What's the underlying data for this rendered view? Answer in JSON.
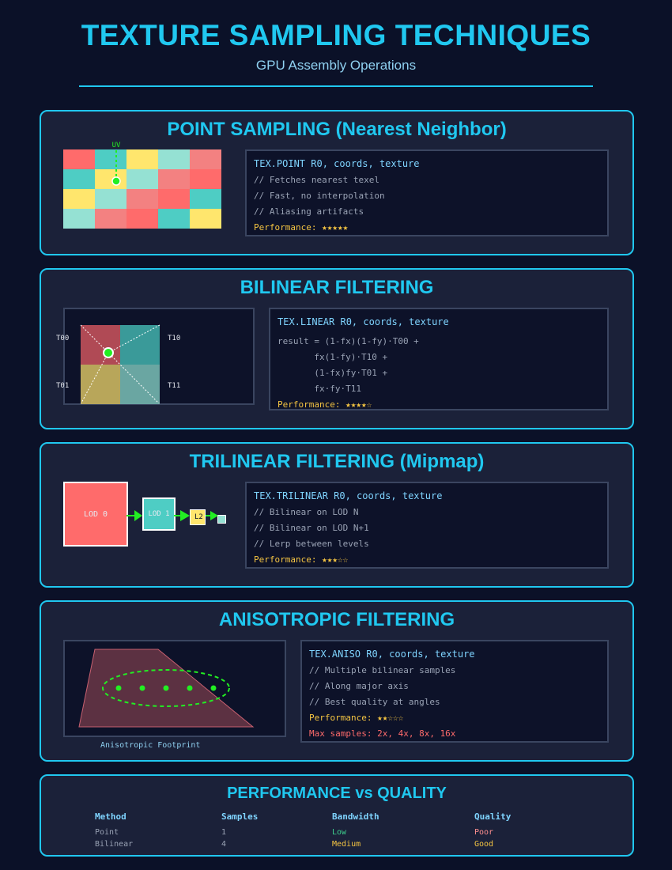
{
  "header": {
    "title": "TEXTURE SAMPLING TECHNIQUES",
    "subtitle": "GPU Assembly Operations"
  },
  "point": {
    "title": "POINT SAMPLING (Nearest Neighbor)",
    "uv_label": "UV",
    "grid_colors": [
      [
        "#ff6b6b",
        "#4ecdc4",
        "#ffe66d",
        "#95e1d3",
        "#f38181"
      ],
      [
        "#4ecdc4",
        "#ffe66d",
        "#95e1d3",
        "#f38181",
        "#ff6b6b"
      ],
      [
        "#ffe66d",
        "#95e1d3",
        "#f38181",
        "#ff6b6b",
        "#4ecdc4"
      ],
      [
        "#95e1d3",
        "#f38181",
        "#ff6b6b",
        "#4ecdc4",
        "#ffe66d"
      ]
    ],
    "code": [
      "TEX.POINT R0, coords, texture",
      "// Fetches nearest texel",
      "// Fast, no interpolation",
      "// Aliasing artifacts",
      "Performance: ★★★★★"
    ]
  },
  "bilinear": {
    "title": "BILINEAR FILTERING",
    "labels": [
      "T00",
      "T10",
      "T01",
      "T11"
    ],
    "code": [
      "TEX.LINEAR R0, coords, texture",
      "result = (1-fx)(1-fy)·T00 +",
      "       fx(1-fy)·T10 +",
      "       (1-fx)fy·T01 +",
      "       fx·fy·T11",
      "Performance: ★★★★☆"
    ]
  },
  "trilinear": {
    "title": "TRILINEAR FILTERING (Mipmap)",
    "lod_labels": [
      "LOD 0",
      "LOD 1",
      "L2"
    ],
    "code": [
      "TEX.TRILINEAR R0, coords, texture",
      "// Bilinear on LOD N",
      "// Bilinear on LOD N+1",
      "// Lerp between levels",
      "Performance: ★★★☆☆"
    ]
  },
  "aniso": {
    "title": "ANISOTROPIC FILTERING",
    "caption": "Anisotropic Footprint",
    "code": [
      "TEX.ANISO R0, coords, texture",
      "// Multiple bilinear samples",
      "// Along major axis",
      "// Best quality at angles",
      "Performance: ★★☆☆☆",
      "Max samples: 2x, 4x, 8x, 16x"
    ]
  },
  "perf_table": {
    "title": "PERFORMANCE vs QUALITY",
    "headers": [
      "Method",
      "Samples",
      "Bandwidth",
      "Quality"
    ],
    "rows": [
      {
        "method": "Point",
        "samples": "1",
        "bandwidth": "Low",
        "quality": "Poor",
        "bandwidth_color": "#3ecf8e",
        "quality_color": "#ff8f8f"
      },
      {
        "method": "Bilinear",
        "samples": "4",
        "bandwidth": "Medium",
        "quality": "Good",
        "bandwidth_color": "#f5c542",
        "quality_color": "#f5c542"
      }
    ]
  }
}
